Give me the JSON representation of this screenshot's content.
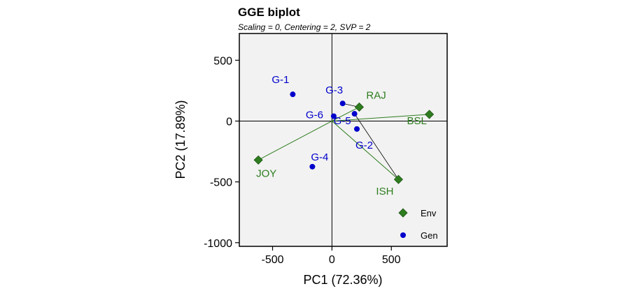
{
  "chart_data": {
    "type": "scatter",
    "title": "GGE biplot",
    "subtitle": "Scaling = 0, Centering = 2, SVP = 2",
    "xlabel": "PC1 (72.36%)",
    "ylabel": "PC2 (17.89%)",
    "xlim": [
      -780,
      970
    ],
    "ylim": [
      -1030,
      720
    ],
    "xticks": [
      -500,
      0,
      500
    ],
    "yticks": [
      500,
      0,
      -500,
      -1000
    ],
    "grid": false,
    "legend_position": "bottom-right",
    "series": [
      {
        "name": "Env",
        "marker": "diamond",
        "color": "#2e7d1f",
        "points": [
          {
            "label": "RAJ",
            "x": 230,
            "y": 115
          },
          {
            "label": "BSL",
            "x": 820,
            "y": 55
          },
          {
            "label": "JOY",
            "x": -620,
            "y": -320
          },
          {
            "label": "ISH",
            "x": 560,
            "y": -480
          }
        ]
      },
      {
        "name": "Gen",
        "marker": "circle",
        "color": "#0000cc",
        "points": [
          {
            "label": "G-1",
            "x": -330,
            "y": 220
          },
          {
            "label": "G-3",
            "x": 90,
            "y": 145
          },
          {
            "label": "G-6",
            "x": 15,
            "y": 40
          },
          {
            "label": "G-5",
            "x": 190,
            "y": 60
          },
          {
            "label": "G-2",
            "x": 210,
            "y": -65
          },
          {
            "label": "G-4",
            "x": -165,
            "y": -375
          }
        ]
      }
    ]
  }
}
